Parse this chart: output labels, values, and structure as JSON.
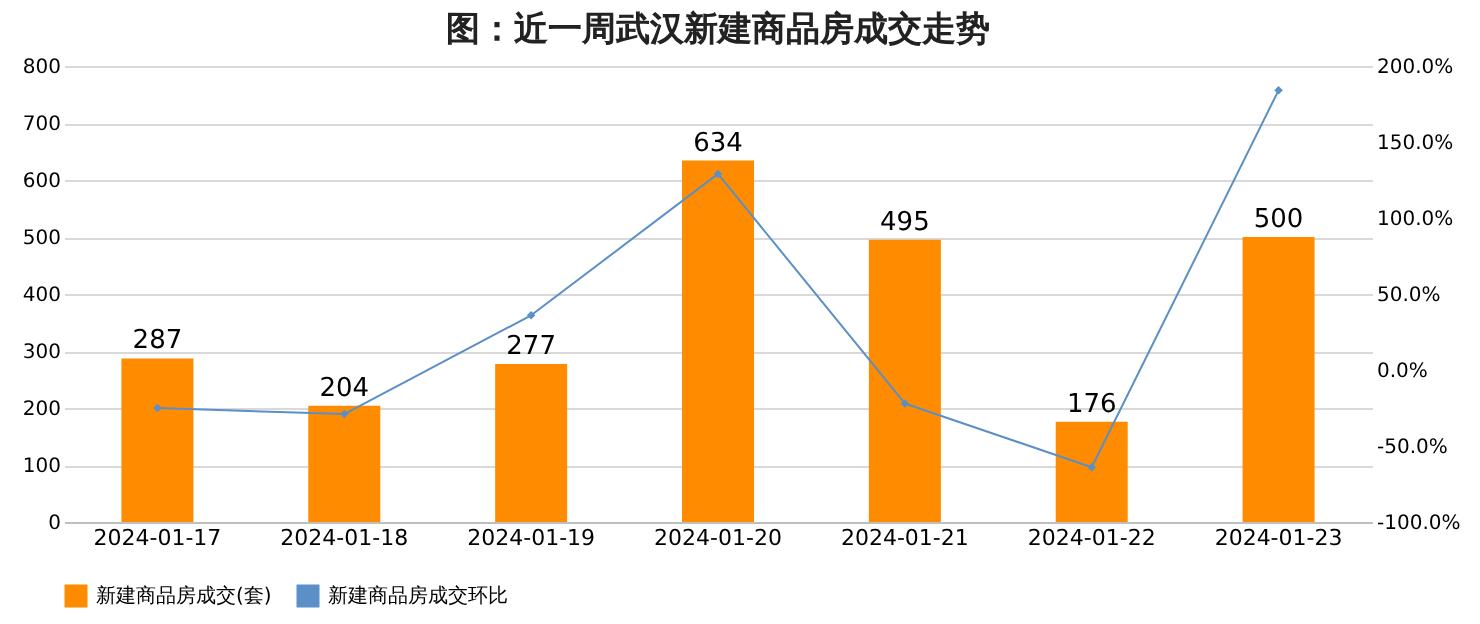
{
  "chart_data": {
    "type": "bar",
    "title": "图：近一周武汉新建商品房成交走势",
    "categories": [
      "2024-01-17",
      "2024-01-18",
      "2024-01-19",
      "2024-01-20",
      "2024-01-21",
      "2024-01-22",
      "2024-01-23"
    ],
    "series": [
      {
        "name": "新建商品房成交(套)",
        "color": "#ff8c00",
        "values": [
          287,
          204,
          277,
          634,
          495,
          176,
          500
        ],
        "value_labels": [
          "287",
          "204",
          "277",
          "634",
          "495",
          "176",
          "500"
        ]
      },
      {
        "name": "新建商品房成交环比",
        "type": "line",
        "axis": "y2",
        "color": "#5b8fc7",
        "marker": "diamond",
        "values": [
          -25,
          -29,
          36,
          129,
          -22,
          -64,
          184
        ]
      }
    ],
    "ylim": [
      0,
      800
    ],
    "yticks": [
      0,
      100,
      200,
      300,
      400,
      500,
      600,
      700,
      800
    ],
    "y2lim": [
      -100,
      200
    ],
    "y2ticks": [
      {
        "value": -100,
        "label": "-100.0%"
      },
      {
        "value": -50,
        "label": "-50.0%"
      },
      {
        "value": 0,
        "label": "0.0%"
      },
      {
        "value": 50,
        "label": "50.0%"
      },
      {
        "value": 100,
        "label": "100.0%"
      },
      {
        "value": 150,
        "label": "150.0%"
      },
      {
        "value": 200,
        "label": "200.0%"
      }
    ],
    "grid": "y",
    "legend": "bottom"
  }
}
